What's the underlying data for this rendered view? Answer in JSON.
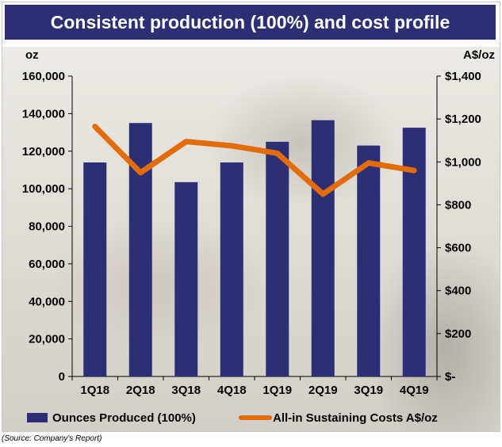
{
  "title": "Consistent production (100%) and cost profile",
  "source": "(Source: Company's Report)",
  "colors": {
    "title_bg": "#2c2f74",
    "bar": "#2c2f74",
    "line": "#e36c0a"
  },
  "chart_data": {
    "type": "bar",
    "categories": [
      "1Q18",
      "2Q18",
      "3Q18",
      "4Q18",
      "1Q19",
      "2Q19",
      "3Q19",
      "4Q19"
    ],
    "series": [
      {
        "name": "Ounces Produced (100%)",
        "type": "bar",
        "axis": "left",
        "values": [
          114000,
          135000,
          103500,
          114000,
          125000,
          136500,
          123000,
          132500
        ]
      },
      {
        "name": "All-in Sustaining Costs A$/oz",
        "type": "line",
        "axis": "right",
        "values": [
          1165,
          950,
          1095,
          1075,
          1040,
          850,
          995,
          960
        ]
      }
    ],
    "ylabel_left": "oz",
    "ylabel_right": "A$/oz",
    "ylim_left": [
      0,
      160000
    ],
    "ylim_right": [
      0,
      1400
    ],
    "yticks_left": [
      "0",
      "20,000",
      "40,000",
      "60,000",
      "80,000",
      "100,000",
      "120,000",
      "140,000",
      "160,000"
    ],
    "yticks_right": [
      "$-",
      "$200",
      "$400",
      "$600",
      "$800",
      "$1,000",
      "$1,200",
      "$1,400"
    ],
    "legend_position": "bottom",
    "grid": false
  }
}
